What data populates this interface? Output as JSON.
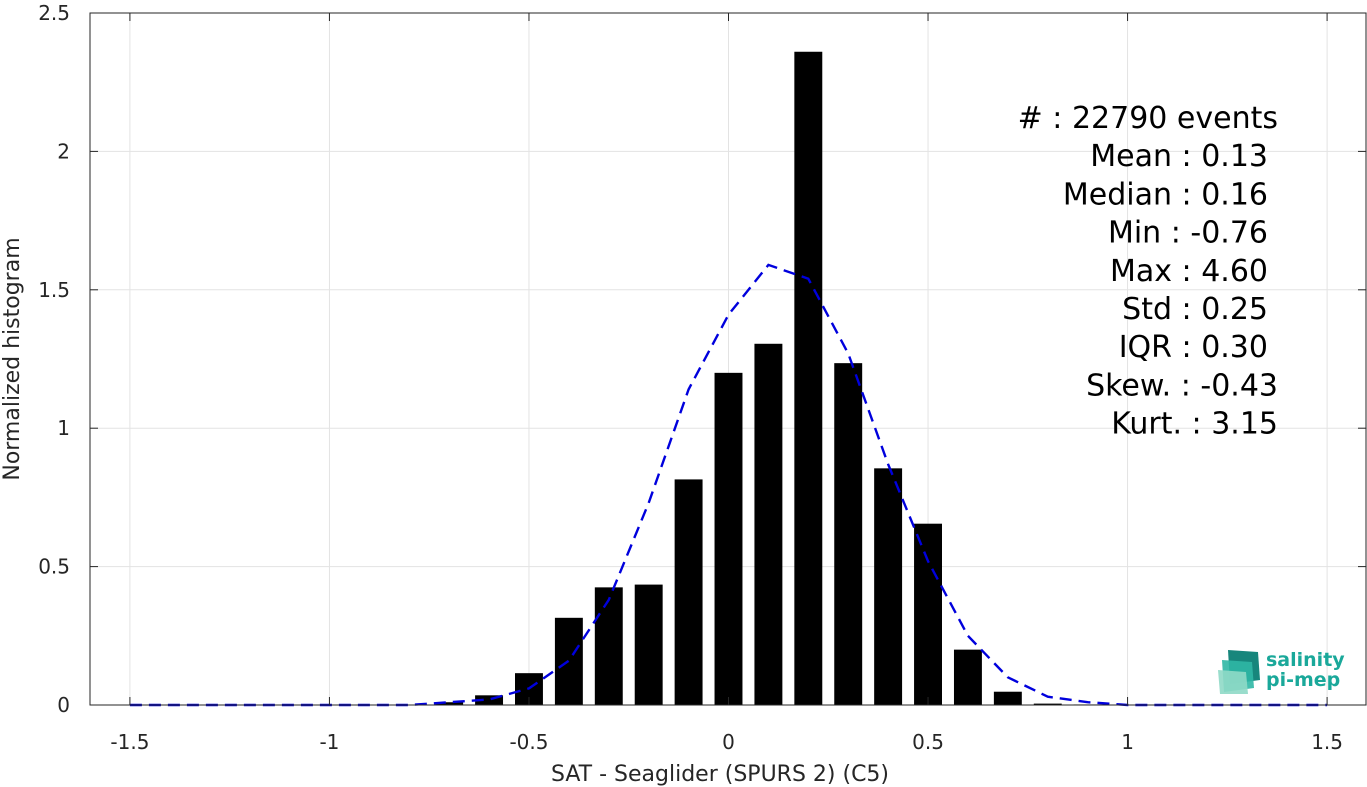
{
  "chart_data": {
    "type": "bar",
    "xlabel": "SAT - Seaglider (SPURS 2) (C5)",
    "ylabel": "Normalized histogram",
    "xlim": [
      -1.6,
      1.6
    ],
    "ylim": [
      0,
      2.5
    ],
    "xticks": [
      -1.5,
      -1,
      -0.5,
      0,
      0.5,
      1,
      1.5
    ],
    "xtick_labels": [
      "-1.5",
      "-1",
      "-0.5",
      "0",
      "0.5",
      "1",
      "1.5"
    ],
    "yticks": [
      0,
      0.5,
      1,
      1.5,
      2,
      2.5
    ],
    "ytick_labels": [
      "0",
      "0.5",
      "1",
      "1.5",
      "2",
      "2.5"
    ],
    "grid": true,
    "bar_width": 0.07,
    "bars": {
      "x": [
        -0.7,
        -0.6,
        -0.5,
        -0.4,
        -0.3,
        -0.2,
        -0.1,
        0.0,
        0.1,
        0.2,
        0.3,
        0.4,
        0.5,
        0.6,
        0.7,
        0.8,
        0.9
      ],
      "values": [
        0.01,
        0.035,
        0.115,
        0.315,
        0.425,
        0.435,
        0.815,
        1.2,
        1.305,
        2.36,
        1.235,
        0.855,
        0.655,
        0.2,
        0.048,
        0.005,
        0.002
      ]
    },
    "fit_curve": {
      "style": "dashed",
      "color": "#0000dd",
      "x": [
        -1.5,
        -1.4,
        -1.3,
        -1.2,
        -1.1,
        -1.0,
        -0.9,
        -0.8,
        -0.7,
        -0.6,
        -0.5,
        -0.4,
        -0.3,
        -0.2,
        -0.1,
        0.0,
        0.1,
        0.2,
        0.3,
        0.4,
        0.5,
        0.6,
        0.7,
        0.8,
        0.9,
        1.0,
        1.1,
        1.2,
        1.3,
        1.4,
        1.5
      ],
      "y": [
        0.0,
        0.0,
        0.0,
        0.0,
        0.0,
        0.0,
        0.0,
        0.0,
        0.01,
        0.02,
        0.06,
        0.16,
        0.38,
        0.73,
        1.14,
        1.41,
        1.59,
        1.54,
        1.27,
        0.87,
        0.52,
        0.25,
        0.1,
        0.03,
        0.01,
        0.0,
        0.0,
        0.0,
        0.0,
        0.0,
        0.0
      ]
    },
    "stats": [
      {
        "label": "#  : 22790 events"
      },
      {
        "label": "Mean : 0.13"
      },
      {
        "label": "Median : 0.16"
      },
      {
        "label": "Min : -0.76"
      },
      {
        "label": "Max : 4.60"
      },
      {
        "label": "Std : 0.25"
      },
      {
        "label": "IQR : 0.30"
      },
      {
        "label": "Skew. : -0.43"
      },
      {
        "label": "Kurt. : 3.15"
      }
    ]
  },
  "logo": {
    "line1": "salinity",
    "line2": "pi-mep",
    "color": "#1aa89a"
  }
}
